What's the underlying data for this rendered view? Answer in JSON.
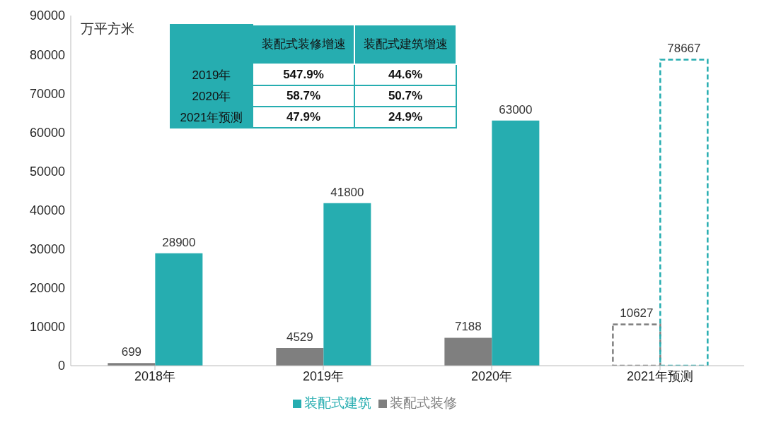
{
  "chart_data": {
    "type": "bar",
    "ylabel": "万平方米",
    "categories": [
      "2018年",
      "2019年",
      "2020年",
      "2021年预测"
    ],
    "series": [
      {
        "name": "装配式装修",
        "color": "#7f7f7f",
        "values": [
          699,
          4529,
          7188,
          null
        ]
      },
      {
        "name": "装配式建筑",
        "color": "#26adb0",
        "values": [
          28900,
          41800,
          63000,
          null
        ]
      },
      {
        "color": "#7f7f7f",
        "values": [
          null,
          null,
          null,
          10627
        ],
        "line_style": "dashed"
      },
      {
        "color": "#26adb0",
        "values": [
          null,
          null,
          null,
          78667
        ],
        "line_style": "dashed"
      }
    ],
    "ylim": [
      0,
      90000
    ],
    "yticks": [
      0,
      10000,
      20000,
      30000,
      40000,
      50000,
      60000,
      70000,
      80000,
      90000
    ],
    "data_labels": true,
    "grid": false,
    "legend": "bottom",
    "annotations": [
      "装配式装修增速",
      "装配式建筑增速",
      "2019年",
      "547.9%",
      "44.6%",
      "2020年",
      "58.7%",
      "50.7%",
      "2021年预测",
      "47.9%",
      "24.9%"
    ]
  }
}
